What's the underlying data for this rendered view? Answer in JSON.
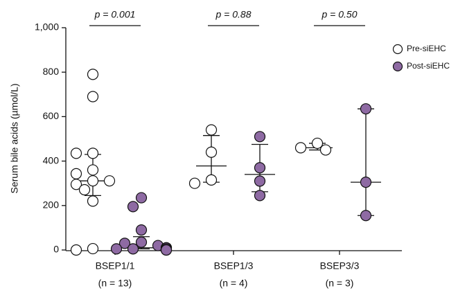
{
  "chart_data": {
    "type": "dot",
    "y_label": "Serum bile acids (µmol/L)",
    "categories": [
      "BSEP1/1",
      "BSEP1/3",
      "BSEP3/3"
    ],
    "sublabels": [
      "(n = 13)",
      "(n = 4)",
      "(n = 3)"
    ],
    "annotations": [
      "p = 0.001",
      "p = 0.88",
      "p = 0.50"
    ],
    "ylim": [
      0,
      1000
    ],
    "yticks": [
      0,
      200,
      400,
      600,
      800,
      {
        "value": 1000,
        "label": "1,000"
      }
    ],
    "legend": "top-right",
    "series": [
      {
        "name": "Pre-siEHC",
        "color": "#ffffff",
        "values": [
          [
            790,
            690,
            435,
            435,
            360,
            343,
            311,
            311,
            295,
            271,
            220,
            6,
            0
          ],
          [
            540,
            440,
            315,
            300
          ],
          [
            480,
            460,
            450
          ]
        ],
        "median": [
          311,
          378,
          460
        ],
        "q1": [
          245,
          305,
          450
        ],
        "q3": [
          430,
          515,
          480
        ]
      },
      {
        "name": "Post-siEHC",
        "color": "#8e6aa3",
        "values": [
          [
            235,
            195,
            90,
            35,
            30,
            20,
            10,
            10,
            5,
            5,
            5,
            0,
            0
          ],
          [
            510,
            370,
            310,
            245
          ],
          [
            635,
            305,
            155
          ]
        ],
        "median": [
          10,
          340,
          305
        ],
        "q1": [
          5,
          262,
          155
        ],
        "q3": [
          60,
          475,
          635
        ]
      }
    ]
  }
}
